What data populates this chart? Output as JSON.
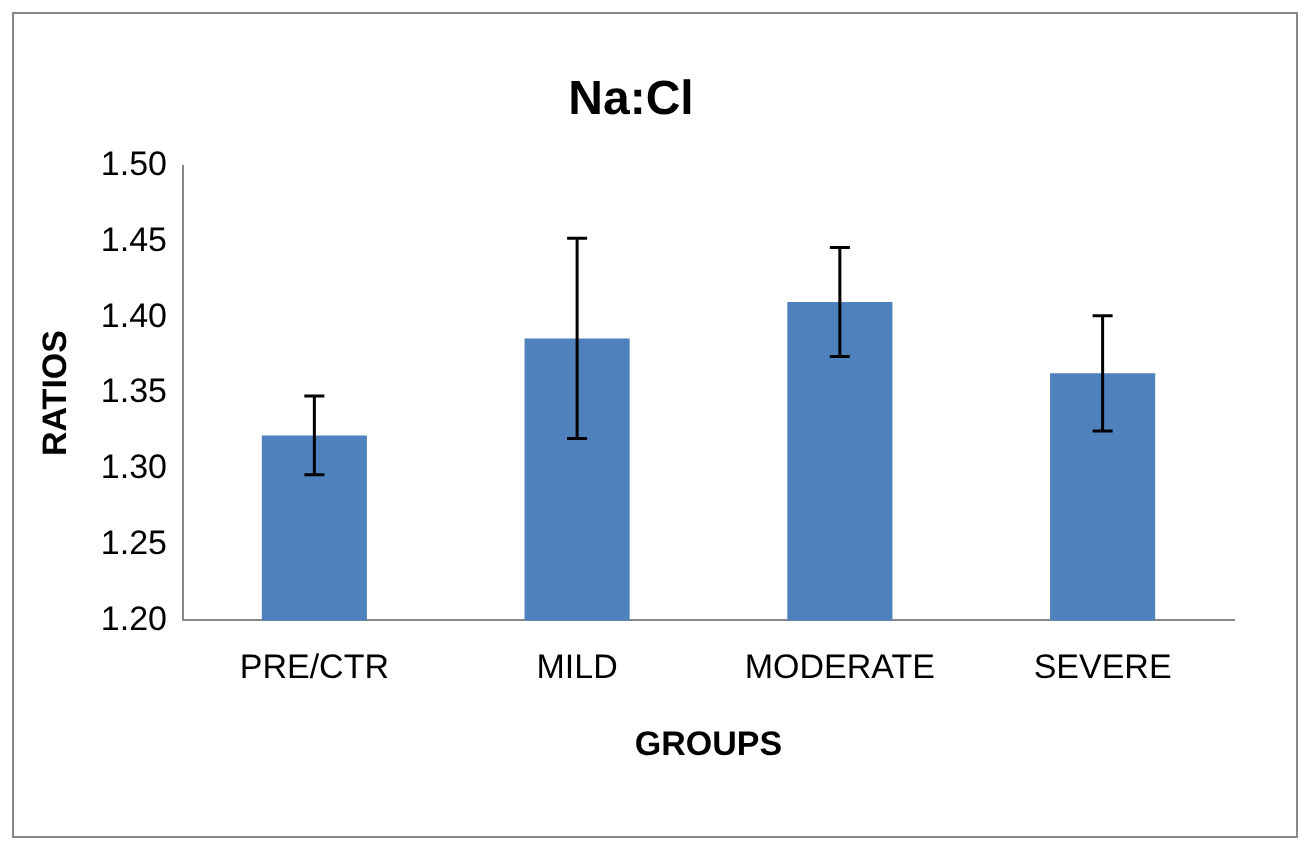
{
  "chart_data": {
    "type": "bar",
    "title": "Na:Cl",
    "xlabel": "GROUPS",
    "ylabel": "RATIOS",
    "categories": [
      "PRE/CTR",
      "MILD",
      "MODERATE",
      "SEVERE"
    ],
    "values": [
      1.322,
      1.386,
      1.41,
      1.363
    ],
    "errors": [
      0.026,
      0.066,
      0.036,
      0.038
    ],
    "color": "#4f81bd",
    "ylim": [
      1.2,
      1.5
    ],
    "yticks": [
      {
        "value": 1.2,
        "label": "1.20"
      },
      {
        "value": 1.25,
        "label": "1.25"
      },
      {
        "value": 1.3,
        "label": "1.30"
      },
      {
        "value": 1.35,
        "label": "1.35"
      },
      {
        "value": 1.4,
        "label": "1.40"
      },
      {
        "value": 1.45,
        "label": "1.45"
      },
      {
        "value": 1.5,
        "label": "1.50"
      }
    ],
    "grid": false,
    "legend": false
  }
}
